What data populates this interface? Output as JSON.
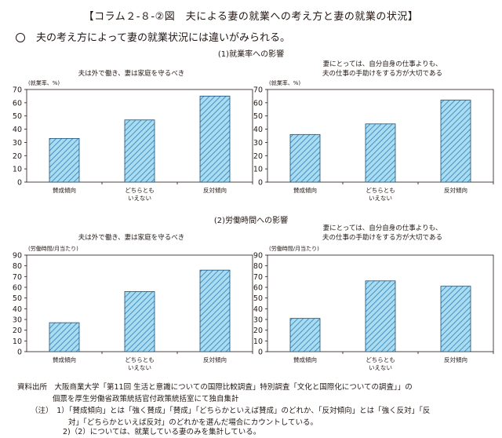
{
  "page": {
    "title": "【コラム２-８-②図　夫による妻の就業への考え方と妻の就業の状況】",
    "summary": "夫の考え方によって妻の就業状況には違いがみられる。"
  },
  "sections": [
    {
      "title": "(1)就業率への影響"
    },
    {
      "title": "(2)労働時間への影響"
    }
  ],
  "chart_titles": [
    "夫は外で働き、妻は家庭を守るべき",
    "妻にとっては、自分自身の仕事よりも、\n夫の仕事の手助けをする方が大切である",
    "夫は外で働き、妻は家庭を守るべき",
    "妻にとっては、自分自身の仕事よりも、\n夫の仕事の手助けをする方が大切である"
  ],
  "chart_data": [
    {
      "type": "bar",
      "ylabel": "(就業率、%)",
      "ylim": [
        0,
        70
      ],
      "yticks": [
        0,
        10,
        20,
        30,
        40,
        50,
        60,
        70
      ],
      "categories": [
        "賛成傾向",
        "どちらとも\nいえない",
        "反対傾向"
      ],
      "values": [
        33,
        47,
        65
      ]
    },
    {
      "type": "bar",
      "ylabel": "(就業率、%)",
      "ylim": [
        0,
        70
      ],
      "yticks": [
        0,
        10,
        20,
        30,
        40,
        50,
        60,
        70
      ],
      "categories": [
        "賛成傾向",
        "どちらとも\nいえない",
        "反対傾向"
      ],
      "values": [
        36,
        44,
        62
      ]
    },
    {
      "type": "bar",
      "ylabel": "(労働時間/月当たり)",
      "ylim": [
        0,
        90
      ],
      "yticks": [
        0,
        10,
        20,
        30,
        40,
        50,
        60,
        70,
        80,
        90
      ],
      "categories": [
        "賛成傾向",
        "どちらとも\nいえない",
        "反対傾向"
      ],
      "values": [
        27,
        56,
        76
      ]
    },
    {
      "type": "bar",
      "ylabel": "(労働時間/月当たり)",
      "ylim": [
        0,
        90
      ],
      "yticks": [
        0,
        10,
        20,
        30,
        40,
        50,
        60,
        70,
        80,
        90
      ],
      "categories": [
        "賛成傾向",
        "どちらとも\nいえない",
        "反対傾向"
      ],
      "values": [
        31,
        66,
        61
      ]
    }
  ],
  "notes": {
    "source_1": "資料出所　大阪商業大学「第11回 生活と意識についての国際比較調査」特別調査「文化と国際化についての調査」」の",
    "source_2": "個票を厚生労働省政策統括官付政策統括室にて独自集計",
    "note_1": "（注）　1）「賛成傾向」とは「強く賛成」「賛成」「どちらかといえば賛成」のどれか、「反対傾向」とは「強く反対」「反",
    "note_1b": "対」「どちらかといえば反対」のどれかを選んだ場合にカウントしている。",
    "note_2": "2)（2）については、就業している妻のみを集計している。"
  },
  "colors": {
    "bar_fill": "#a9dcf0",
    "bar_stroke": "#1b4f78",
    "hatch": "#2f7eb5",
    "axis": "#231815"
  }
}
